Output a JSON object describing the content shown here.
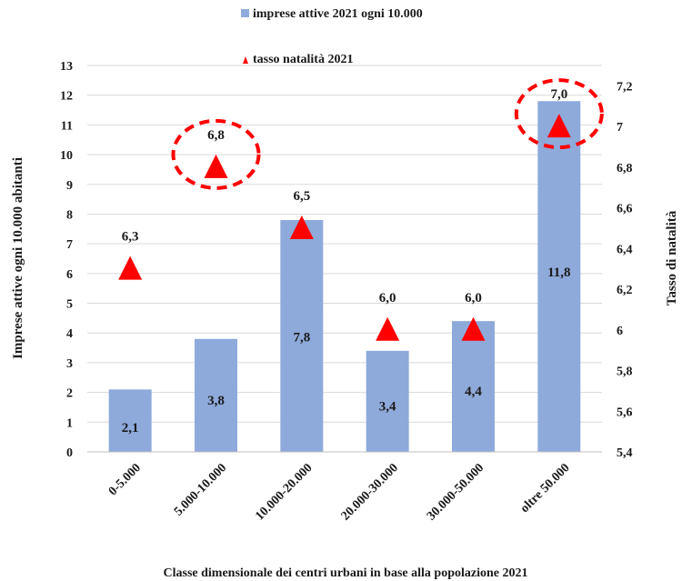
{
  "chart_data": {
    "type": "bar",
    "categories": [
      "0-5.000",
      "5.000-10.000",
      "10.000-20.000",
      "20.000-30.000",
      "30.000-50.000",
      "oltre 50.000"
    ],
    "series": [
      {
        "name": "imprese attive 2021 ogni 10.000",
        "type": "bar",
        "axis": "left",
        "color": "#8eaadb",
        "values": [
          2.1,
          3.8,
          7.8,
          3.4,
          4.4,
          11.8
        ],
        "labels": [
          "2,1",
          "3,8",
          "7,8",
          "3,4",
          "4,4",
          "11,8"
        ]
      },
      {
        "name": "tasso natalità 2021",
        "type": "scatter",
        "marker": "triangle",
        "axis": "right",
        "color": "#ff0000",
        "values": [
          6.3,
          6.8,
          6.5,
          6.0,
          6.0,
          7.0
        ],
        "labels": [
          "6,3",
          "6,8",
          "6,5",
          "6,0",
          "6,0",
          "7,0"
        ]
      }
    ],
    "xlabel": "Classe dimensionale dei centri urbani in base alla popolazione 2021",
    "ylabel": "Imprese attive ogni 10.000 abitanti",
    "y2label": "Tasso di natalità",
    "ylim": [
      0,
      13
    ],
    "y2lim": [
      5.4,
      7.3
    ],
    "yticks": [
      "0",
      "1",
      "2",
      "3",
      "4",
      "5",
      "6",
      "7",
      "8",
      "9",
      "10",
      "11",
      "12",
      "13"
    ],
    "y2ticks": [
      "5,4",
      "5,6",
      "5,8",
      "6",
      "6,2",
      "6,4",
      "6,6",
      "6,8",
      "7",
      "7,2"
    ],
    "grid": true,
    "legend_position": "top",
    "highlighted_categories": [
      "5.000-10.000",
      "oltre 50.000"
    ],
    "highlight_color": "#ff0000"
  }
}
